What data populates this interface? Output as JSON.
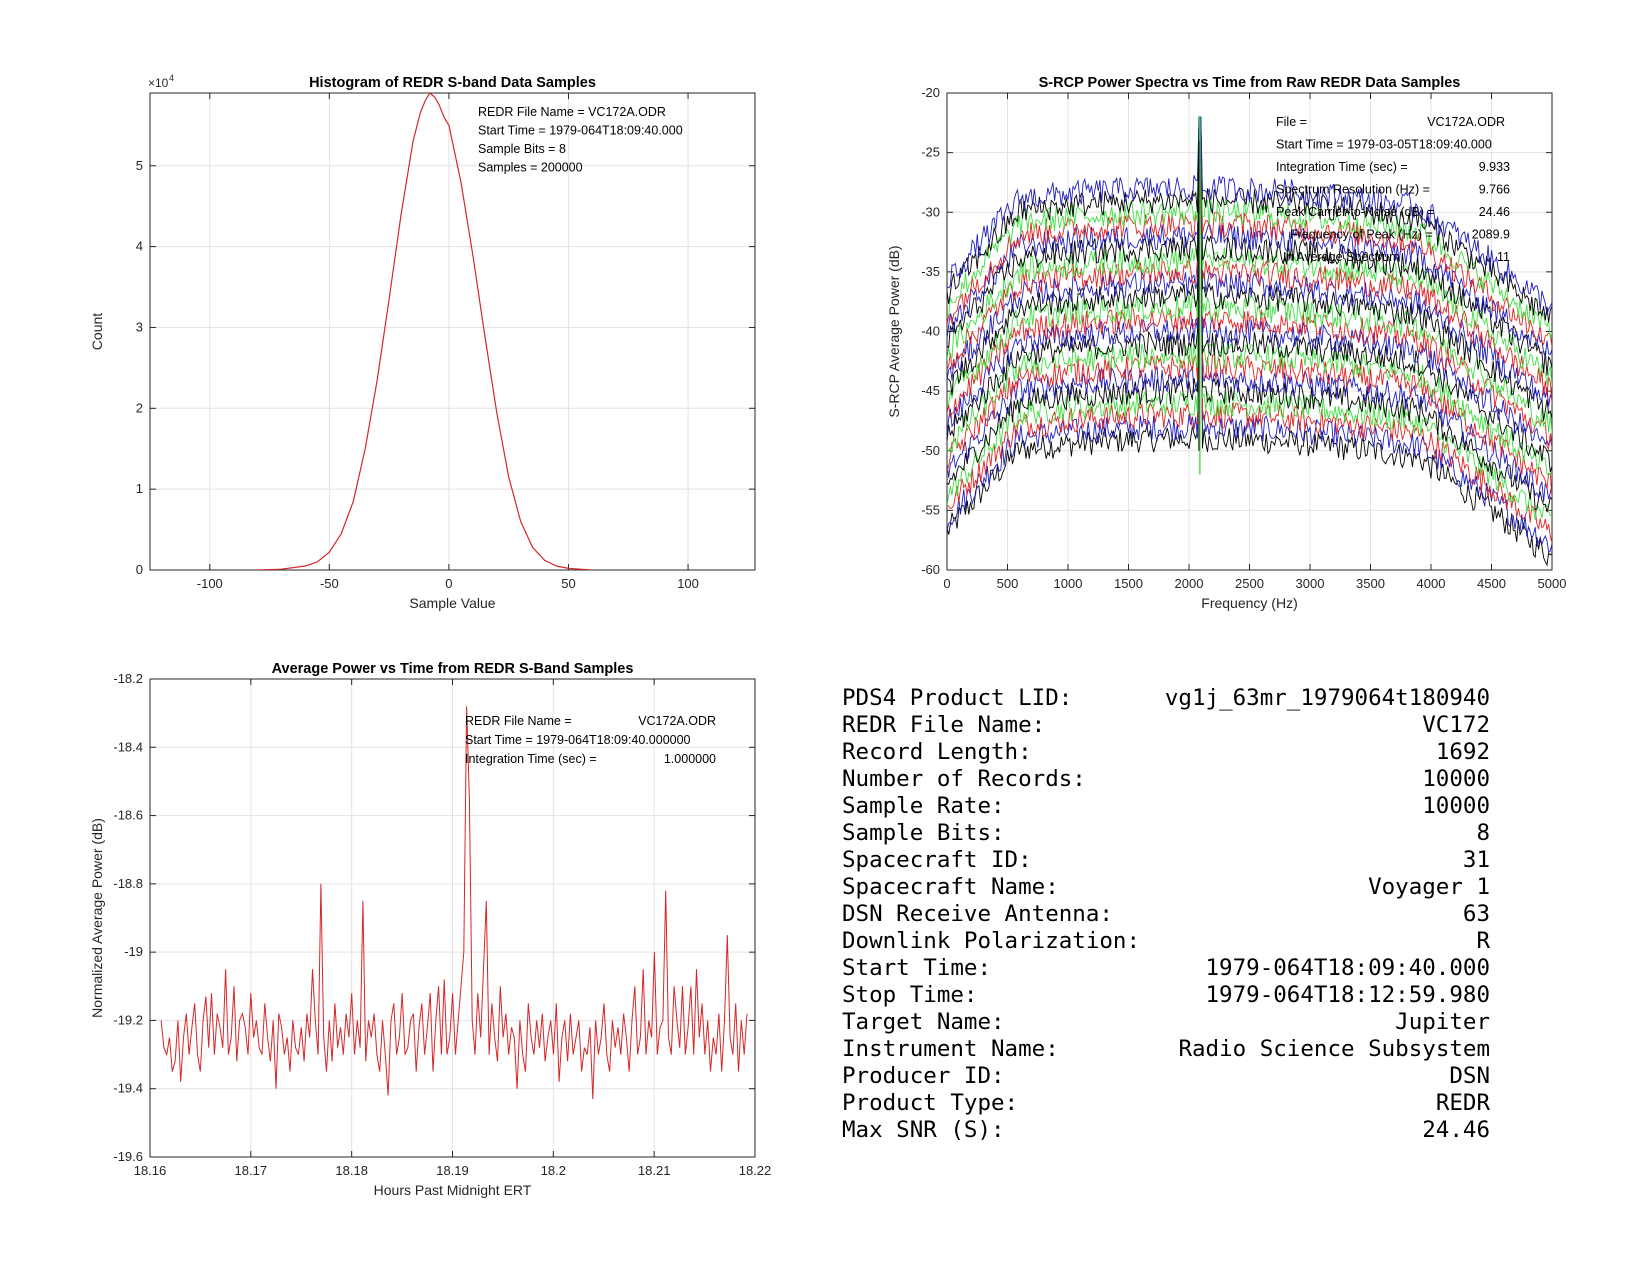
{
  "chart_data": [
    {
      "id": "histogram",
      "type": "line",
      "title": "Histogram of REDR S-band Data Samples",
      "xlabel": "Sample Value",
      "ylabel": "Count",
      "y_exponent_label": "×10",
      "y_exponent_value": "4",
      "xlim": [
        -125,
        128
      ],
      "ylim": [
        0,
        5.9
      ],
      "xticks": [
        -100,
        -50,
        0,
        50,
        100
      ],
      "xtick_labels": [
        "-100",
        "-50",
        "0",
        "50",
        "100"
      ],
      "yticks": [
        0,
        1,
        2,
        3,
        4,
        5
      ],
      "ytick_labels": [
        "0",
        "1",
        "2",
        "3",
        "4",
        "5"
      ],
      "grid": true,
      "color": "#d62728",
      "series": [
        {
          "x": [
            -80,
            -70,
            -60,
            -55,
            -50,
            -45,
            -40,
            -35,
            -30,
            -25,
            -20,
            -15,
            -12,
            -10,
            -8,
            -6,
            -4,
            -2,
            0,
            5,
            10,
            15,
            20,
            25,
            30,
            35,
            40,
            45,
            50,
            55,
            60
          ],
          "values": [
            0.0,
            0.01,
            0.05,
            0.1,
            0.22,
            0.45,
            0.85,
            1.5,
            2.35,
            3.35,
            4.4,
            5.3,
            5.65,
            5.8,
            5.9,
            5.85,
            5.75,
            5.6,
            5.5,
            4.8,
            3.9,
            2.9,
            1.95,
            1.15,
            0.6,
            0.28,
            0.12,
            0.05,
            0.02,
            0.01,
            0.0
          ]
        }
      ],
      "annotations": [
        "REDR File Name = VC172A.ODR",
        "Start Time = 1979-064T18:09:40.000",
        "Sample Bits = 8",
        "Samples = 200000"
      ]
    },
    {
      "id": "spectra",
      "type": "line",
      "title": "S-RCP Power Spectra vs Time from Raw REDR Data Samples",
      "xlabel": "Frequency (Hz)",
      "ylabel": "S-RCP Average Power (dB)",
      "xlim": [
        0,
        5000
      ],
      "ylim": [
        -60,
        -20
      ],
      "xticks": [
        0,
        500,
        1000,
        1500,
        2000,
        2500,
        3000,
        3500,
        4000,
        4500,
        5000
      ],
      "xtick_labels": [
        "0",
        "500",
        "1000",
        "1500",
        "2000",
        "2500",
        "3000",
        "3500",
        "4000",
        "4500",
        "5000"
      ],
      "yticks": [
        -60,
        -55,
        -50,
        -45,
        -40,
        -35,
        -30,
        -25,
        -20
      ],
      "ytick_labels": [
        "-60",
        "-55",
        "-50",
        "-45",
        "-40",
        "-35",
        "-30",
        "-25",
        "-20"
      ],
      "grid": true,
      "series_colors": [
        "#000000",
        "#1f1fbf",
        "#e32222",
        "#40e040"
      ],
      "series_count": 22,
      "center_offsets_db": [
        -52,
        -51,
        -50,
        -49,
        -48,
        -47,
        -46,
        -45,
        -44,
        -43,
        -42,
        -41,
        -40,
        -39,
        -38,
        -37,
        -36,
        -35,
        -34,
        -33,
        -32,
        -31
      ],
      "peak_frequency_hz": 2089.9,
      "peak_power_db": -22,
      "annotations": [
        {
          "label": "File =",
          "value": "VC172A.ODR"
        },
        {
          "label": "Start Time = 1979-03-05T18:09:40.000",
          "value": ""
        },
        {
          "label": "Integration Time (sec) =",
          "value": "9.933"
        },
        {
          "label": "Spectrum Resolution (Hz) =",
          "value": "9.766"
        },
        {
          "label": "Peak Carrier-to-Noise (dB) =",
          "value": "24.46"
        },
        {
          "label": "Frequency of Peak (Hz) =",
          "value": "2089.9"
        },
        {
          "label": "In Average Spectrum",
          "value": "11"
        }
      ]
    },
    {
      "id": "avgpower",
      "type": "line",
      "title": "Average Power vs Time from REDR S-Band Samples",
      "xlabel": "Hours Past Midnight ERT",
      "ylabel": "Normalized Average Power (dB)",
      "xlim": [
        18.16,
        18.22
      ],
      "ylim": [
        -19.6,
        -18.2
      ],
      "xticks": [
        18.16,
        18.17,
        18.18,
        18.19,
        18.2,
        18.21,
        18.22
      ],
      "xtick_labels": [
        "18.16",
        "18.17",
        "18.18",
        "18.19",
        "18.2",
        "18.21",
        "18.22"
      ],
      "yticks": [
        -19.6,
        -19.4,
        -19.2,
        -19.0,
        -18.8,
        -18.6,
        -18.4,
        -18.2
      ],
      "ytick_labels": [
        "-19.6",
        "-19.4",
        "-19.2",
        "-19",
        "-18.8",
        "-18.6",
        "-18.4",
        "-18.2"
      ],
      "grid": true,
      "color": "#d62728",
      "x_start": 18.1611,
      "x_step": 0.000278,
      "series": [
        {
          "values": [
            -19.2,
            -19.28,
            -19.3,
            -19.25,
            -19.35,
            -19.32,
            -19.2,
            -19.38,
            -19.25,
            -19.18,
            -19.3,
            -19.22,
            -19.15,
            -19.3,
            -19.35,
            -19.2,
            -19.13,
            -19.28,
            -19.12,
            -19.3,
            -19.18,
            -19.22,
            -19.28,
            -19.05,
            -19.3,
            -19.25,
            -19.1,
            -19.32,
            -19.2,
            -19.18,
            -19.22,
            -19.3,
            -19.12,
            -19.25,
            -19.2,
            -19.28,
            -19.3,
            -19.15,
            -19.25,
            -19.32,
            -19.2,
            -19.4,
            -19.18,
            -19.22,
            -19.3,
            -19.25,
            -19.35,
            -19.2,
            -19.28,
            -19.3,
            -19.22,
            -19.32,
            -19.18,
            -19.25,
            -19.05,
            -19.2,
            -19.3,
            -18.8,
            -19.25,
            -19.35,
            -19.2,
            -19.32,
            -19.15,
            -19.28,
            -19.22,
            -19.3,
            -19.18,
            -19.25,
            -19.12,
            -19.3,
            -19.2,
            -19.28,
            -18.85,
            -19.32,
            -19.2,
            -19.25,
            -19.18,
            -19.3,
            -19.35,
            -19.2,
            -19.3,
            -19.42,
            -19.2,
            -19.15,
            -19.3,
            -19.25,
            -19.12,
            -19.3,
            -19.28,
            -19.2,
            -19.18,
            -19.35,
            -19.22,
            -19.15,
            -19.3,
            -19.22,
            -19.12,
            -19.35,
            -19.2,
            -19.1,
            -19.3,
            -19.08,
            -19.3,
            -19.25,
            -19.12,
            -19.3,
            -19.2,
            -19.1,
            -19.0,
            -18.28,
            -18.55,
            -19.2,
            -19.3,
            -19.12,
            -19.25,
            -19.05,
            -18.85,
            -19.3,
            -19.15,
            -19.25,
            -19.32,
            -19.1,
            -19.25,
            -19.18,
            -19.3,
            -19.22,
            -19.25,
            -19.4,
            -19.2,
            -19.3,
            -19.35,
            -19.15,
            -19.25,
            -19.3,
            -19.2,
            -19.28,
            -19.18,
            -19.32,
            -19.25,
            -19.2,
            -19.3,
            -19.15,
            -19.38,
            -19.25,
            -19.2,
            -19.32,
            -19.18,
            -19.3,
            -19.25,
            -19.2,
            -19.35,
            -19.28,
            -19.3,
            -19.22,
            -19.43,
            -19.2,
            -19.3,
            -19.25,
            -19.15,
            -19.3,
            -19.35,
            -19.2,
            -19.28,
            -19.22,
            -19.3,
            -19.18,
            -19.25,
            -19.35,
            -19.2,
            -19.1,
            -19.3,
            -19.25,
            -19.05,
            -19.3,
            -19.2,
            -19.25,
            -19.0,
            -19.3,
            -19.22,
            -19.2,
            -18.82,
            -19.25,
            -19.3,
            -19.1,
            -19.2,
            -19.28,
            -19.1,
            -19.3,
            -19.22,
            -19.1,
            -19.3,
            -19.05,
            -19.25,
            -19.15,
            -19.3,
            -19.2,
            -19.35,
            -19.25,
            -19.3,
            -19.18,
            -19.35,
            -19.2,
            -18.95,
            -19.25,
            -19.3,
            -19.15,
            -19.35,
            -19.2,
            -19.3,
            -19.18
          ]
        }
      ],
      "annotations": [
        {
          "label": "REDR File Name =",
          "value": "VC172A.ODR"
        },
        {
          "label": "Start Time = 1979-064T18:09:40.000000",
          "value": ""
        },
        {
          "label": "Integration Time (sec) =",
          "value": "1.000000"
        }
      ]
    }
  ],
  "info": [
    {
      "label": "PDS4 Product LID:",
      "value": "vg1j_63mr_1979064t180940"
    },
    {
      "label": "REDR File Name:",
      "value": "VC172"
    },
    {
      "label": "Record Length:",
      "value": "1692"
    },
    {
      "label": "Number of Records:",
      "value": "10000"
    },
    {
      "label": "Sample Rate:",
      "value": "10000"
    },
    {
      "label": "Sample Bits:",
      "value": "8"
    },
    {
      "label": "Spacecraft ID:",
      "value": "31"
    },
    {
      "label": "Spacecraft Name:",
      "value": "Voyager 1"
    },
    {
      "label": "DSN Receive Antenna:",
      "value": "63"
    },
    {
      "label": "Downlink Polarization:",
      "value": "R"
    },
    {
      "label": "Start Time:",
      "value": "1979-064T18:09:40.000"
    },
    {
      "label": "Stop Time:",
      "value": "1979-064T18:12:59.980"
    },
    {
      "label": "Target Name:",
      "value": "Jupiter"
    },
    {
      "label": "Instrument Name:",
      "value": "Radio Science Subsystem"
    },
    {
      "label": "Producer ID:",
      "value": "DSN"
    },
    {
      "label": "Product Type:",
      "value": "REDR"
    },
    {
      "label": "Max SNR (S):",
      "value": "24.46"
    }
  ]
}
